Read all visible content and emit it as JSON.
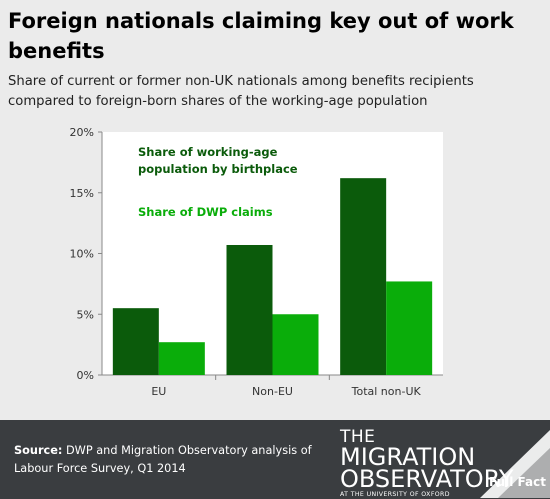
{
  "header": {
    "title": "Foreign nationals claiming key out of work benefits",
    "subtitle": "Share of current or former non-UK nationals among benefits recipients compared to foreign-born shares of the working-age population"
  },
  "chart_data": {
    "type": "bar",
    "categories": [
      "EU",
      "Non-EU",
      "Total non-UK"
    ],
    "series": [
      {
        "name": "Share of working-age population by birthplace",
        "values": [
          5.5,
          10.7,
          16.2
        ],
        "color": "#0b5b0b"
      },
      {
        "name": "Share of DWP claims",
        "values": [
          2.7,
          5.0,
          7.7
        ],
        "color": "#0aad0a"
      }
    ],
    "ylim": [
      0,
      20
    ],
    "yticks": [
      0,
      5,
      10,
      15,
      20
    ],
    "ytick_labels": [
      "0%",
      "5%",
      "10%",
      "15%",
      "20%"
    ],
    "grid": false,
    "legend_placement": "top-left",
    "xlabel": "",
    "ylabel": ""
  },
  "footer": {
    "source_label": "Source:",
    "source_text": "DWP and Migration Observatory analysis of Labour Force Survey, Q1 2014",
    "logo_line1": "THE",
    "logo_line2": "MIGRATION",
    "logo_line3": "OBSERVATORY",
    "logo_line4": "AT THE UNIVERSITY OF OXFORD",
    "fullfact_text": "Full Fact"
  }
}
